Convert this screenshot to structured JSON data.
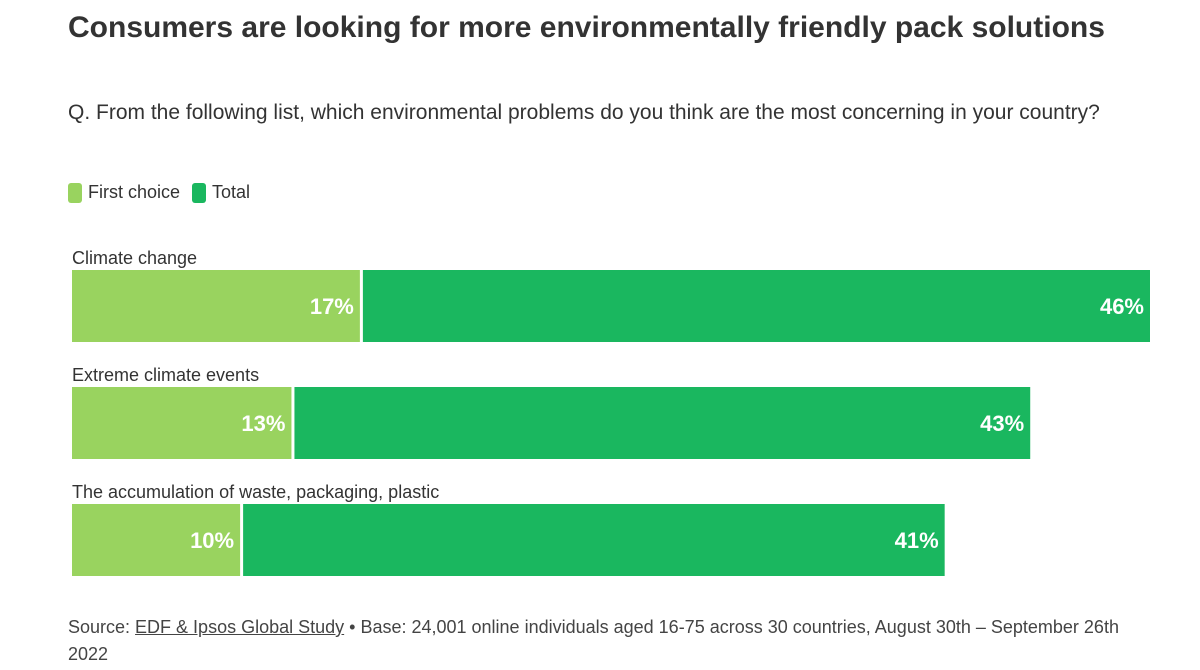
{
  "header": {
    "title": "Consumers are looking for more environmentally friendly pack solutions",
    "subtitle": "Q. From the following list, which environmental problems do you think are the most concerning in your country?"
  },
  "legend": {
    "items": [
      {
        "label": "First choice",
        "color": "#99d35f"
      },
      {
        "label": "Total",
        "color": "#1ab75f"
      }
    ]
  },
  "chart_data": {
    "type": "bar",
    "orientation": "horizontal",
    "stacked": true,
    "categories": [
      "Climate change",
      "Extreme climate events",
      "The accumulation of waste, packaging, plastic"
    ],
    "series": [
      {
        "name": "First choice",
        "values": [
          17,
          13,
          10
        ],
        "labels": [
          "17%",
          "13%",
          "10%"
        ],
        "color": "#99d35f"
      },
      {
        "name": "Total",
        "values": [
          46,
          43,
          41
        ],
        "labels": [
          "46%",
          "43%",
          "41%"
        ],
        "color": "#1ab75f"
      }
    ],
    "xlim": [
      0,
      63
    ],
    "grid": false,
    "legend_position": "top-left"
  },
  "footer": {
    "source_prefix": "Source: ",
    "source_link": "EDF & Ipsos Global Study",
    "source_rest": " • Base: 24,001 online individuals aged 16-75 across 30 countries, August 30th – September 26th 2022"
  }
}
